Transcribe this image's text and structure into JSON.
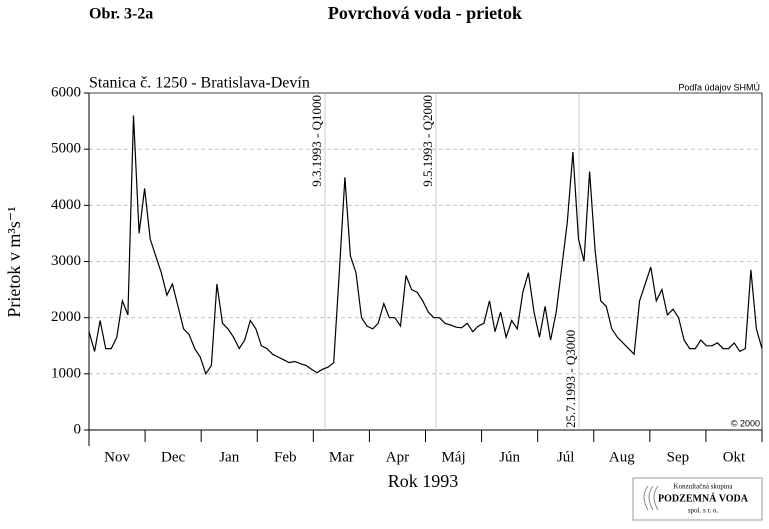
{
  "chart_data": {
    "type": "line",
    "figure_label": "Obr. 3-2a",
    "title": "Povrchová voda - prietok",
    "subtitle": "Stanica č. 1250 - Bratislava-Devín",
    "source": "Podľa údajov SHMÚ",
    "copyright": "© 2000",
    "xlabel": "Rok 1993",
    "ylabel": "Prietok v m³s⁻¹",
    "months": [
      "Nov",
      "Dec",
      "Jan",
      "Feb",
      "Mar",
      "Apr",
      "Máj",
      "Jún",
      "Júl",
      "Aug",
      "Sep",
      "Okt"
    ],
    "annotations": [
      {
        "text": "9.3.1993 - Q1000"
      },
      {
        "text": "9.5.1993 - Q2000"
      },
      {
        "text": "25.7.1993 - Q3000"
      }
    ],
    "logo": [
      "Konzultačná skupina",
      "PODZEMNÁ VODA",
      "spol. s r. o."
    ],
    "color": "#000000",
    "grid": true,
    "ylim": [
      0,
      6000
    ],
    "yticks": [
      0,
      1000,
      2000,
      3000,
      4000,
      5000,
      6000
    ],
    "values": [
      1750,
      1400,
      1950,
      1450,
      1450,
      1650,
      2300,
      2050,
      5600,
      3500,
      4300,
      3400,
      3100,
      2800,
      2400,
      2600,
      2200,
      1800,
      1700,
      1450,
      1300,
      1000,
      1150,
      2600,
      1900,
      1800,
      1650,
      1450,
      1600,
      1950,
      1800,
      1500,
      1450,
      1350,
      1300,
      1250,
      1200,
      1220,
      1180,
      1150,
      1080,
      1020,
      1080,
      1120,
      1200,
      2800,
      4500,
      3100,
      2800,
      2000,
      1850,
      1800,
      1900,
      2250,
      2000,
      2000,
      1850,
      2750,
      2500,
      2450,
      2300,
      2100,
      2000,
      2000,
      1900,
      1870,
      1830,
      1820,
      1900,
      1750,
      1850,
      1900,
      2300,
      1750,
      2100,
      1650,
      1950,
      1800,
      2450,
      2800,
      2100,
      1650,
      2200,
      1600,
      2100,
      2900,
      3700,
      4950,
      3400,
      3000,
      4600,
      3200,
      2300,
      2200,
      1800,
      1650,
      1550,
      1450,
      1350,
      2300,
      2600,
      2900,
      2300,
      2500,
      2050,
      2150,
      2000,
      1600,
      1450,
      1450,
      1600,
      1500,
      1500,
      1550,
      1450,
      1450,
      1550,
      1400,
      1450,
      2850,
      1800,
      1450
    ]
  }
}
